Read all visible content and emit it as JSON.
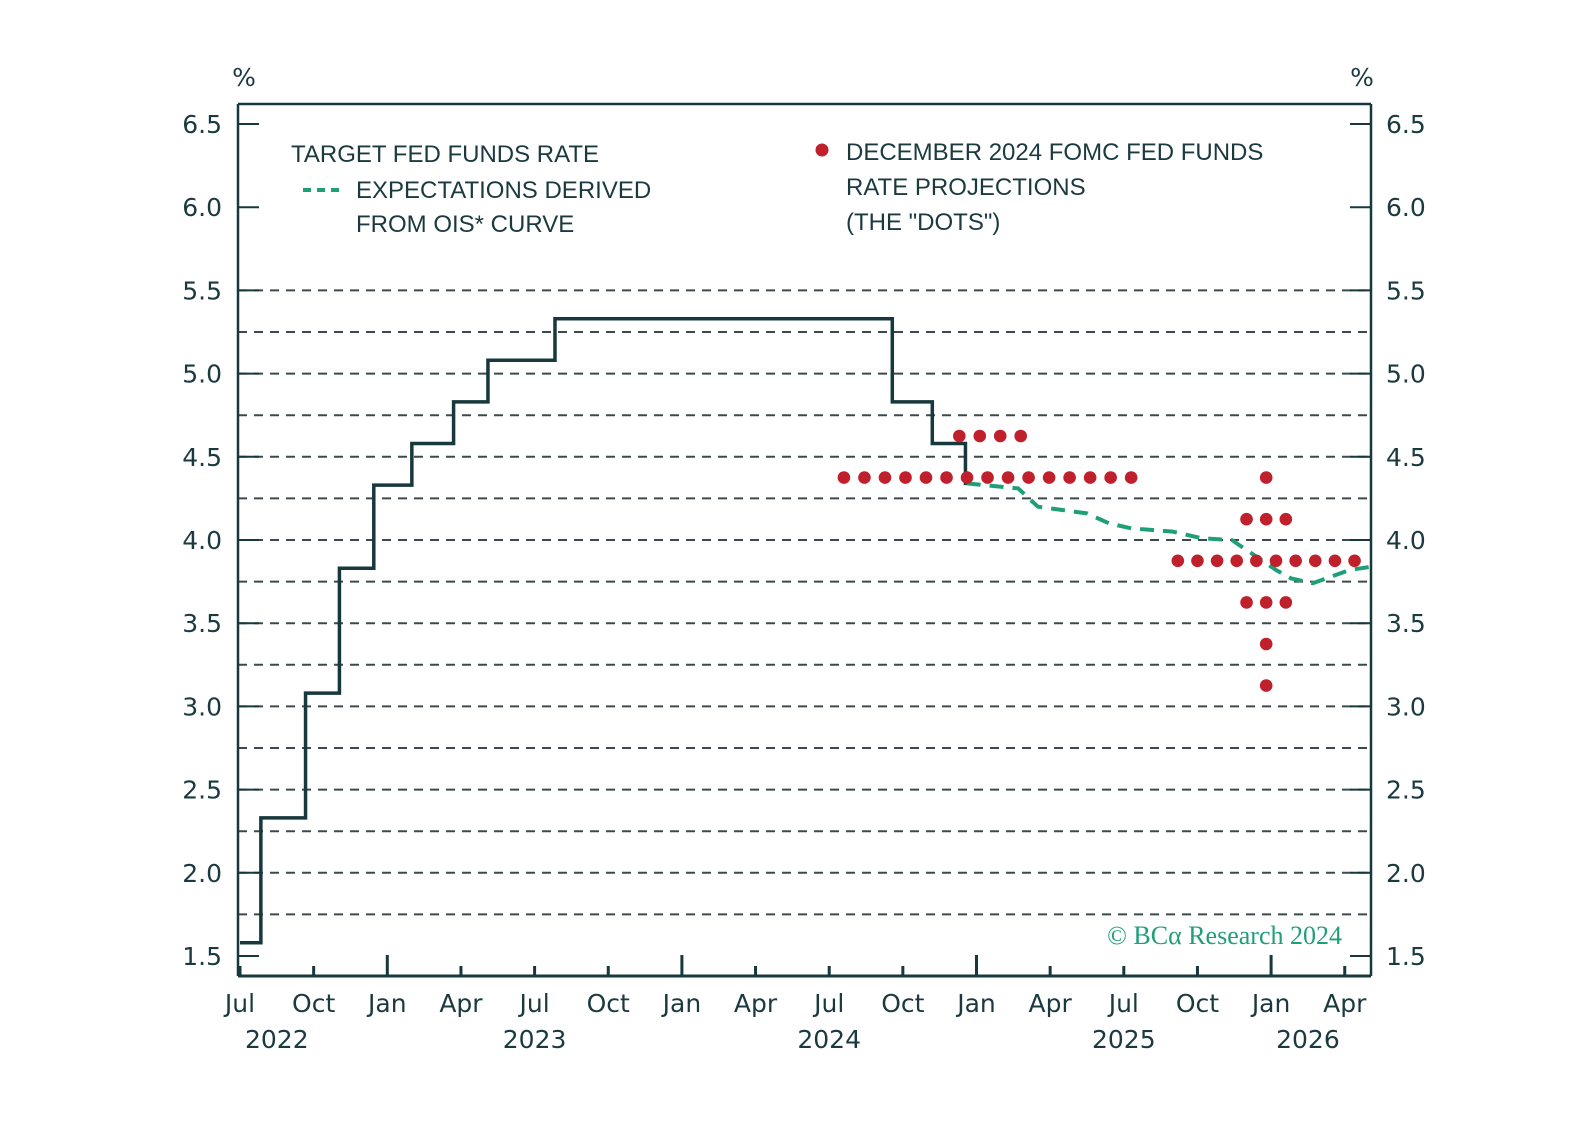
{
  "chart_data": {
    "type": "line",
    "left_unit": "%",
    "right_unit": "%",
    "ylim": [
      1.38,
      6.62
    ],
    "y_ticks": [
      "1.5",
      "2.0",
      "2.5",
      "3.0",
      "3.5",
      "4.0",
      "4.5",
      "5.0",
      "5.5",
      "6.0",
      "6.5"
    ],
    "y_gridlines": [
      1.75,
      2.0,
      2.25,
      2.5,
      2.75,
      3.0,
      3.25,
      3.5,
      3.75,
      4.0,
      4.25,
      4.5,
      4.75,
      5.0,
      5.25,
      5.5
    ],
    "x_unit": "months since Jul 2022",
    "xlim": [
      -0.1,
      46.1
    ],
    "x_ticks": [
      {
        "m": 0,
        "label": "Jul",
        "major": false
      },
      {
        "m": 3,
        "label": "Oct",
        "major": false
      },
      {
        "m": 6,
        "label": "Jan",
        "major": true
      },
      {
        "m": 9,
        "label": "Apr",
        "major": false
      },
      {
        "m": 12,
        "label": "Jul",
        "major": false
      },
      {
        "m": 15,
        "label": "Oct",
        "major": false
      },
      {
        "m": 18,
        "label": "Jan",
        "major": true
      },
      {
        "m": 21,
        "label": "Apr",
        "major": false
      },
      {
        "m": 24,
        "label": "Jul",
        "major": false
      },
      {
        "m": 27,
        "label": "Oct",
        "major": false
      },
      {
        "m": 30,
        "label": "Jan",
        "major": true
      },
      {
        "m": 33,
        "label": "Apr",
        "major": false
      },
      {
        "m": 36,
        "label": "Jul",
        "major": false
      },
      {
        "m": 39,
        "label": "Oct",
        "major": false
      },
      {
        "m": 42,
        "label": "Jan",
        "major": true
      },
      {
        "m": 45,
        "label": "Apr",
        "major": false
      }
    ],
    "year_labels": [
      {
        "m": 1.5,
        "label": "2022"
      },
      {
        "m": 12,
        "label": "2023"
      },
      {
        "m": 24,
        "label": "2024"
      },
      {
        "m": 36,
        "label": "2025"
      },
      {
        "m": 43.5,
        "label": "2026"
      }
    ],
    "series": [
      {
        "name": "TARGET FED FUNDS RATE",
        "style": "step",
        "color": "#17383d",
        "points": [
          [
            0,
            1.58
          ],
          [
            0.85,
            2.33
          ],
          [
            2.67,
            3.08
          ],
          [
            4.05,
            3.83
          ],
          [
            5.45,
            4.33
          ],
          [
            7.0,
            4.58
          ],
          [
            8.7,
            4.83
          ],
          [
            10.1,
            5.08
          ],
          [
            12.83,
            5.33
          ],
          [
            26.57,
            4.83
          ],
          [
            28.2,
            4.58
          ],
          [
            29.55,
            4.33
          ]
        ],
        "end": [
          29.55,
          4.37
        ]
      },
      {
        "name": "EXPECTATIONS DERIVED FROM OIS* CURVE",
        "style": "dashed",
        "color": "#1f9f78",
        "points": [
          [
            29.6,
            4.34
          ],
          [
            31.7,
            4.31
          ],
          [
            32.5,
            4.2
          ],
          [
            34.5,
            4.16
          ],
          [
            35.4,
            4.1
          ],
          [
            36.3,
            4.07
          ],
          [
            38.0,
            4.05
          ],
          [
            39.2,
            4.01
          ],
          [
            40.4,
            4.0
          ],
          [
            41.4,
            3.9
          ],
          [
            42.2,
            3.82
          ],
          [
            42.8,
            3.77
          ],
          [
            43.7,
            3.74
          ],
          [
            45.2,
            3.82
          ],
          [
            46.1,
            3.84
          ]
        ]
      },
      {
        "name": "DECEMBER 2024 FOMC FED FUNDS RATE PROJECTIONS (THE \"DOTS\")",
        "style": "dots",
        "color": "#c0202b",
        "rows": [
          {
            "value": 4.625,
            "count": 4,
            "m_start": 29.3,
            "m_end": 31.8
          },
          {
            "value": 4.375,
            "count": 15,
            "m_start": 24.6,
            "m_end": 36.3
          },
          {
            "value": 4.375,
            "count": 1,
            "m_start": 41.8,
            "m_end": 41.8
          },
          {
            "value": 4.125,
            "count": 3,
            "m_start": 41.0,
            "m_end": 42.6
          },
          {
            "value": 3.875,
            "count": 10,
            "m_start": 38.2,
            "m_end": 45.4
          },
          {
            "value": 3.625,
            "count": 3,
            "m_start": 41.0,
            "m_end": 42.6
          },
          {
            "value": 3.375,
            "count": 1,
            "m_start": 41.8,
            "m_end": 41.8
          },
          {
            "value": 3.125,
            "count": 1,
            "m_start": 41.8,
            "m_end": 41.8
          }
        ]
      }
    ],
    "legend": {
      "left": [
        "TARGET FED FUNDS RATE",
        "EXPECTATIONS DERIVED",
        "FROM OIS* CURVE"
      ],
      "right": [
        "DECEMBER 2024 FOMC FED FUNDS",
        "RATE PROJECTIONS",
        "(THE \"DOTS\")"
      ]
    },
    "copyright": "© BCα Research 2024",
    "axis_color": "#17383d",
    "grid_color": "#3b4a4c"
  }
}
